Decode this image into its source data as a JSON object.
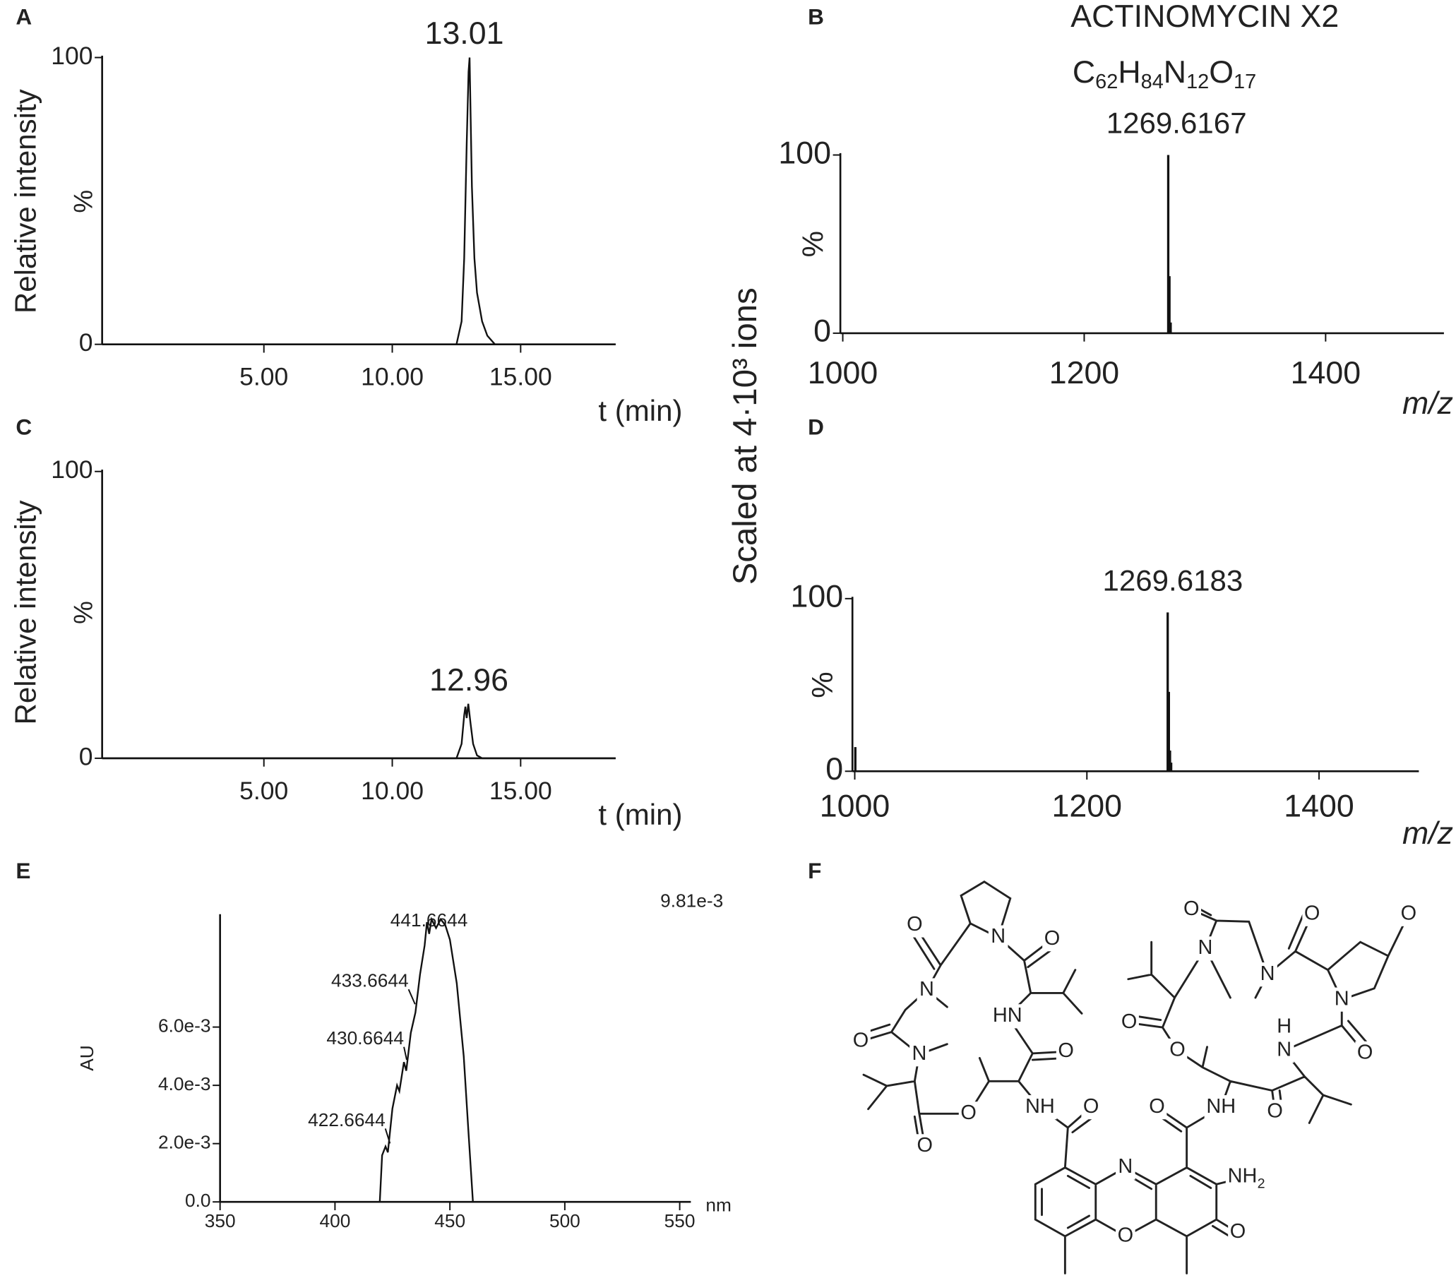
{
  "shared_ylabel": "Scaled at 4·10³ ions",
  "chart_data": [
    {
      "type": "line",
      "label": "A",
      "ylabel": "Relative intensity",
      "yaxis_label": "%",
      "xlabel": "t (min)",
      "annotation": "13.01",
      "xlim": [
        -1.3,
        18.7
      ],
      "xticks": [
        {
          "value": 5,
          "label": "5.00"
        },
        {
          "value": 10,
          "label": "10.00"
        },
        {
          "value": 15,
          "label": "15.00"
        }
      ],
      "ylim": [
        0,
        100
      ],
      "yticks": [
        0,
        100
      ],
      "color": "#111",
      "x": [
        -1.3,
        12.5,
        12.7,
        12.8,
        12.9,
        12.97,
        13.01,
        13.05,
        13.1,
        13.2,
        13.3,
        13.5,
        13.7,
        14.0,
        18.7
      ],
      "values": [
        0,
        0,
        8,
        30,
        70,
        95,
        100,
        80,
        55,
        30,
        18,
        8,
        3,
        0,
        0
      ]
    },
    {
      "type": "stem",
      "label": "B",
      "title": "ACTINOMYCIN X2",
      "formula": [
        "C",
        "62",
        "H",
        "84",
        "N",
        "12",
        "O",
        "17"
      ],
      "yaxis_label": "%",
      "xlabel": "m/z",
      "annotation": "1269.6167",
      "xlim": [
        998,
        1498
      ],
      "xticks": [
        1000,
        1200,
        1400
      ],
      "ylim": [
        0,
        100
      ],
      "yticks": [
        0,
        100
      ],
      "color": "#111",
      "x": [
        1269.6167,
        1270.62,
        1271.62
      ],
      "values": [
        100,
        32,
        6
      ]
    },
    {
      "type": "line",
      "label": "C",
      "ylabel": "Relative intensity",
      "yaxis_label": "%",
      "xlabel": "t (min)",
      "annotation": "12.96",
      "xlim": [
        -1.3,
        18.7
      ],
      "xticks": [
        {
          "value": 5,
          "label": "5.00"
        },
        {
          "value": 10,
          "label": "10.00"
        },
        {
          "value": 15,
          "label": "15.00"
        }
      ],
      "ylim": [
        0,
        100
      ],
      "yticks": [
        0,
        100
      ],
      "color": "#111",
      "x": [
        -1.3,
        12.5,
        12.7,
        12.8,
        12.85,
        12.9,
        12.96,
        13.05,
        13.15,
        13.3,
        13.5,
        18.7
      ],
      "values": [
        0,
        0,
        5,
        15,
        18,
        14,
        19,
        12,
        5,
        1,
        0,
        0
      ]
    },
    {
      "type": "stem",
      "label": "D",
      "yaxis_label": "%",
      "xlabel": "m/z",
      "annotation": "1269.6183",
      "xlim": [
        998,
        1486
      ],
      "xticks": [
        1000,
        1200,
        1400
      ],
      "ylim": [
        0,
        100
      ],
      "yticks": [
        0,
        100
      ],
      "color": "#111",
      "x": [
        1000.5,
        1269.6183,
        1270.62,
        1271.6,
        1272.6
      ],
      "values": [
        14,
        92,
        46,
        12,
        5
      ]
    },
    {
      "type": "line",
      "label": "E",
      "ylabel": "AU",
      "xlabel": "nm",
      "corner_label": "9.81e-3",
      "annotations": [
        "441.6644",
        "433.6644",
        "430.6644",
        "422.6644"
      ],
      "xlim": [
        350,
        550
      ],
      "xticks": [
        350,
        400,
        450,
        500,
        550
      ],
      "ylim": [
        0,
        0.00981
      ],
      "yticks": [
        {
          "value": 0,
          "label": "0.0"
        },
        {
          "value": 0.002,
          "label": "2.0e-3"
        },
        {
          "value": 0.004,
          "label": "4.0e-3"
        },
        {
          "value": 0.006,
          "label": "6.0e-3"
        }
      ],
      "color": "#111",
      "x": [
        350,
        419.5,
        420.5,
        422,
        423,
        425,
        427,
        428,
        430,
        431,
        433,
        435,
        437,
        439,
        440,
        441,
        442,
        444,
        446,
        448,
        450,
        453,
        456,
        458,
        460,
        550
      ],
      "values": [
        0,
        0,
        0.0016,
        0.0019,
        0.0017,
        0.0032,
        0.004,
        0.0038,
        0.0048,
        0.0045,
        0.0058,
        0.0065,
        0.0078,
        0.0088,
        0.0096,
        0.0092,
        0.0097,
        0.0094,
        0.0097,
        0.0095,
        0.009,
        0.0075,
        0.005,
        0.0025,
        0,
        0
      ]
    }
  ],
  "structure": {
    "label": "F",
    "atoms": [
      "O",
      "N",
      "O",
      "N",
      "HN",
      "O",
      "N",
      "O",
      "O",
      "NH",
      "O",
      "O",
      "O",
      "O",
      "O",
      "N",
      "N",
      "N",
      "H",
      "N",
      "O",
      "O",
      "O",
      "O",
      "NH",
      "O",
      "N",
      "NH",
      "O",
      "O"
    ],
    "subscript": "2"
  }
}
